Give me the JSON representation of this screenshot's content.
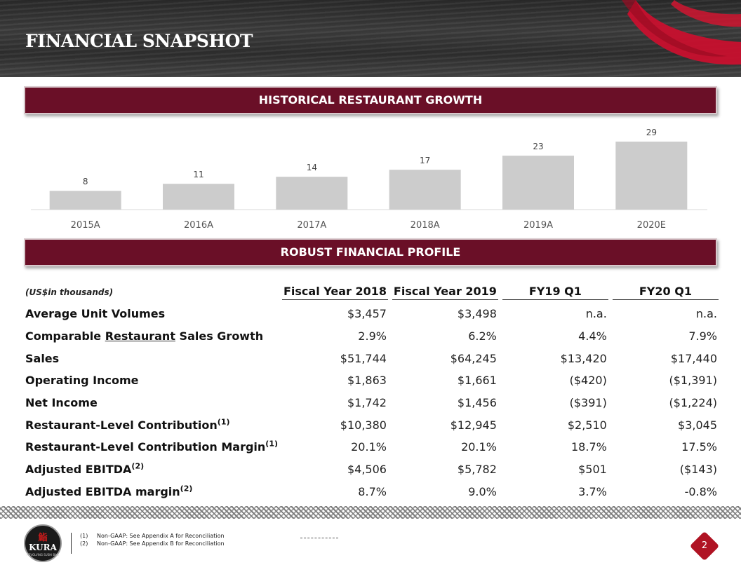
{
  "page": {
    "title": "FINANCIAL SNAPSHOT",
    "page_number": "2"
  },
  "growth_banner": "HISTORICAL RESTAURANT GROWTH",
  "profile_banner": "ROBUST FINANCIAL PROFILE",
  "chart_data": {
    "type": "bar",
    "categories": [
      "2015A",
      "2016A",
      "2017A",
      "2018A",
      "2019A",
      "2020E"
    ],
    "values": [
      8,
      11,
      14,
      17,
      23,
      29
    ],
    "title": "",
    "xlabel": "",
    "ylabel": "",
    "ylim": [
      0,
      29
    ],
    "data_labels": true,
    "grid": false,
    "bar_color": "#cccccc"
  },
  "table": {
    "units_note": "(US$in thousands)",
    "columns": [
      "Fiscal Year 2018",
      "Fiscal Year 2019",
      "FY19 Q1",
      "FY20 Q1"
    ],
    "rows": [
      {
        "label": "Average Unit Volumes",
        "sup": "",
        "values": [
          "$3,457",
          "$3,498",
          "n.a.",
          "n.a."
        ]
      },
      {
        "label_pre": "Comparable ",
        "label_underline": "Restaurant",
        "label_post": " Sales Growth",
        "sup": "",
        "values": [
          "2.9%",
          "6.2%",
          "4.4%",
          "7.9%"
        ]
      },
      {
        "label": "Sales",
        "sup": "",
        "values": [
          "$51,744",
          "$64,245",
          "$13,420",
          "$17,440"
        ]
      },
      {
        "label": "Operating Income",
        "sup": "",
        "values": [
          "$1,863",
          "$1,661",
          "($420)",
          "($1,391)"
        ]
      },
      {
        "label": "Net Income",
        "sup": "",
        "values": [
          "$1,742",
          "$1,456",
          "($391)",
          "($1,224)"
        ]
      },
      {
        "label": "Restaurant-Level Contribution",
        "sup": "(1)",
        "values": [
          "$10,380",
          "$12,945",
          "$2,510",
          "$3,045"
        ]
      },
      {
        "label": "Restaurant-Level Contribution Margin",
        "sup": "(1)",
        "values": [
          "20.1%",
          "20.1%",
          "18.7%",
          "17.5%"
        ]
      },
      {
        "label": "Adjusted EBITDA",
        "sup": "(2)",
        "values": [
          "$4,506",
          "$5,782",
          "$501",
          "($143)"
        ]
      },
      {
        "label": "Adjusted EBITDA margin",
        "sup": "(2)",
        "values": [
          "8.7%",
          "9.0%",
          "3.7%",
          "-0.8%"
        ]
      }
    ]
  },
  "footer": {
    "logo_kanji": "鮨",
    "logo_text": "KURA",
    "logo_sub": "REVOLVING SUSHI BAR",
    "notes": [
      {
        "num": "(1)",
        "text": "Non-GAAP: See Appendix A for Reconciliation"
      },
      {
        "num": "(2)",
        "text": "Non-GAAP: See Appendix B for Reconciliation"
      }
    ]
  },
  "colors": {
    "banner": "#6a0f27",
    "brush_red": "#c8102e",
    "badge_red": "#b01323"
  }
}
